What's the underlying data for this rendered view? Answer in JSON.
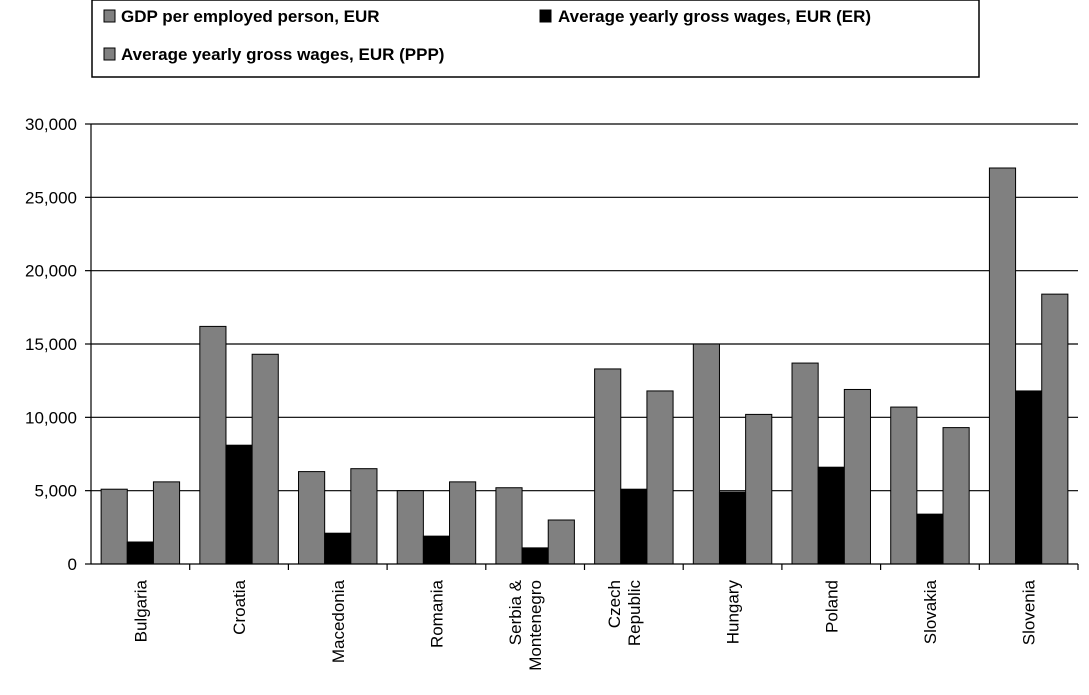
{
  "chart_data": {
    "type": "bar",
    "categories": [
      [
        "Bulgaria"
      ],
      [
        "Croatia"
      ],
      [
        "Macedonia"
      ],
      [
        "Romania"
      ],
      [
        "Serbia &",
        "Montenegro"
      ],
      [
        "Czech",
        "Republic"
      ],
      [
        "Hungary"
      ],
      [
        "Poland"
      ],
      [
        "Slovakia"
      ],
      [
        "Slovenia"
      ]
    ],
    "series": [
      {
        "name": "GDP per employed person, EUR",
        "color": "#808080",
        "values": [
          5100,
          16200,
          6300,
          5000,
          5200,
          13300,
          15000,
          13700,
          10700,
          27000
        ]
      },
      {
        "name": "Average yearly gross wages, EUR (ER)",
        "color": "#000000",
        "values": [
          1500,
          8100,
          2100,
          1900,
          1100,
          5100,
          4900,
          6600,
          3400,
          11800
        ]
      },
      {
        "name": "Average yearly gross wages, EUR (PPP)",
        "color": "#808080",
        "values": [
          5600,
          14300,
          6500,
          5600,
          3000,
          11800,
          10200,
          11900,
          9300,
          18400
        ]
      }
    ],
    "ylim": [
      0,
      30000
    ],
    "yticks": [
      "0",
      "5,000",
      "10,000",
      "15,000",
      "20,000",
      "25,000",
      "30,000"
    ],
    "grid": true,
    "legend_position": "top",
    "title": "",
    "xlabel": "",
    "ylabel": ""
  }
}
